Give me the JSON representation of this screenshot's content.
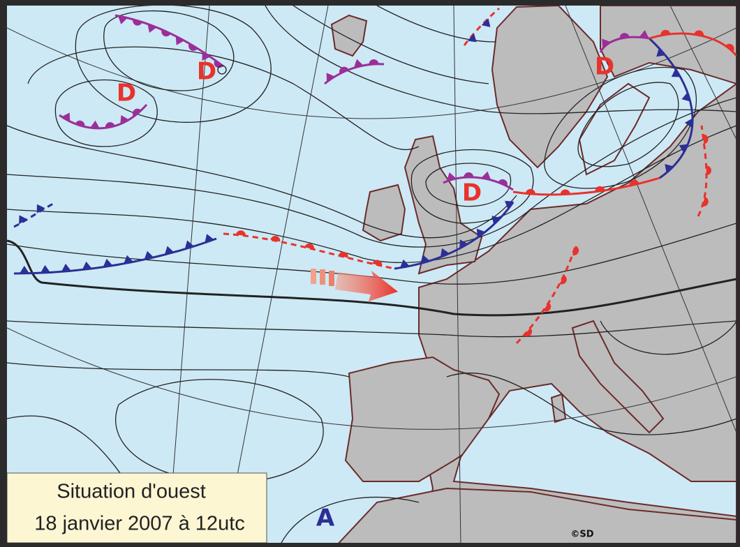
{
  "map": {
    "title": "Situation d'ouest",
    "date": "18 janvier 2007 à 12utc",
    "credit": "©SD",
    "pressure_centers": [
      "D",
      "D",
      "D",
      "D",
      "A"
    ]
  }
}
